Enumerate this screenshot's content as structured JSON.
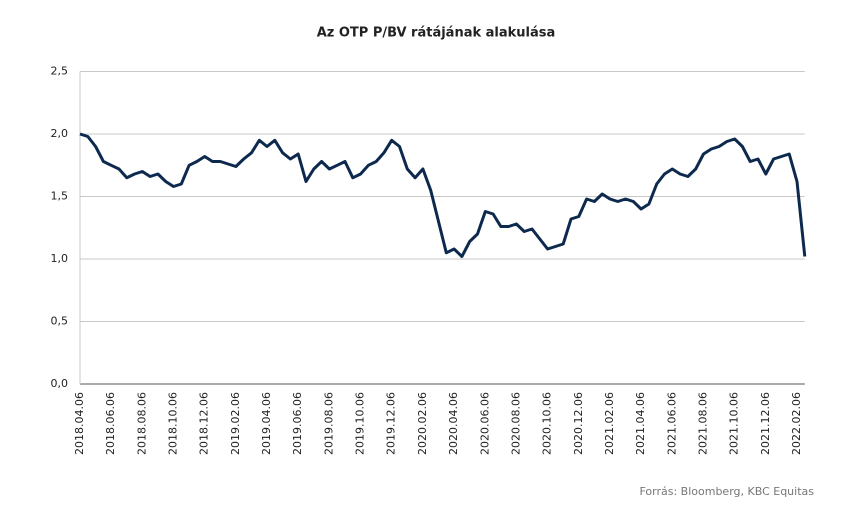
{
  "chart_data": {
    "type": "line",
    "title": "Az OTP P/BV rátájának alakulása",
    "source": "Forrás: Bloomberg,  KBC Equitas",
    "categories": [
      "2018.04.06",
      null,
      null,
      null,
      "2018.06.06",
      null,
      null,
      null,
      "2018.08.06",
      null,
      null,
      null,
      "2018.10.06",
      null,
      null,
      null,
      "2018.12.06",
      null,
      null,
      null,
      "2019.02.06",
      null,
      null,
      null,
      "2019.04.06",
      null,
      null,
      null,
      "2019.06.06",
      null,
      null,
      null,
      "2019.08.06",
      null,
      null,
      null,
      "2019.10.06",
      null,
      null,
      null,
      "2019.12.06",
      null,
      null,
      null,
      "2020.02.06",
      null,
      null,
      null,
      "2020.04.06",
      null,
      null,
      null,
      "2020.06.06",
      null,
      null,
      null,
      "2020.08.06",
      null,
      null,
      null,
      "2020.10.06",
      null,
      null,
      null,
      "2020.12.06",
      null,
      null,
      null,
      "2021.02.06",
      null,
      null,
      null,
      "2021.04.06",
      null,
      null,
      null,
      "2021.06.06",
      null,
      null,
      null,
      "2021.08.06",
      null,
      null,
      null,
      "2021.10.06",
      null,
      null,
      null,
      "2021.12.06",
      null,
      null,
      null,
      "2022.02.06",
      null
    ],
    "values": [
      2.0,
      1.98,
      1.9,
      1.78,
      1.75,
      1.72,
      1.65,
      1.68,
      1.7,
      1.66,
      1.68,
      1.62,
      1.58,
      1.6,
      1.75,
      1.78,
      1.82,
      1.78,
      1.78,
      1.76,
      1.74,
      1.8,
      1.85,
      1.95,
      1.9,
      1.95,
      1.85,
      1.8,
      1.84,
      1.62,
      1.72,
      1.78,
      1.72,
      1.75,
      1.78,
      1.65,
      1.68,
      1.75,
      1.78,
      1.85,
      1.95,
      1.9,
      1.72,
      1.65,
      1.72,
      1.55,
      1.3,
      1.05,
      1.08,
      1.02,
      1.14,
      1.2,
      1.38,
      1.36,
      1.26,
      1.26,
      1.28,
      1.22,
      1.24,
      1.16,
      1.08,
      1.1,
      1.12,
      1.32,
      1.34,
      1.48,
      1.46,
      1.52,
      1.48,
      1.46,
      1.48,
      1.46,
      1.4,
      1.44,
      1.6,
      1.68,
      1.72,
      1.68,
      1.66,
      1.72,
      1.84,
      1.88,
      1.9,
      1.94,
      1.96,
      1.9,
      1.78,
      1.8,
      1.68,
      1.8,
      1.82,
      1.84,
      1.62,
      1.02
    ],
    "color": "#0d2a4e",
    "ylim": [
      0,
      2.5
    ],
    "yticks": [
      {
        "value": 0,
        "label": "0,0"
      },
      {
        "value": 0.5,
        "label": "0,5"
      },
      {
        "value": 1,
        "label": "1,0"
      },
      {
        "value": 1.5,
        "label": "1,5"
      },
      {
        "value": 2,
        "label": "2,0"
      },
      {
        "value": 2.5,
        "label": "2,5"
      }
    ],
    "grid": true
  }
}
